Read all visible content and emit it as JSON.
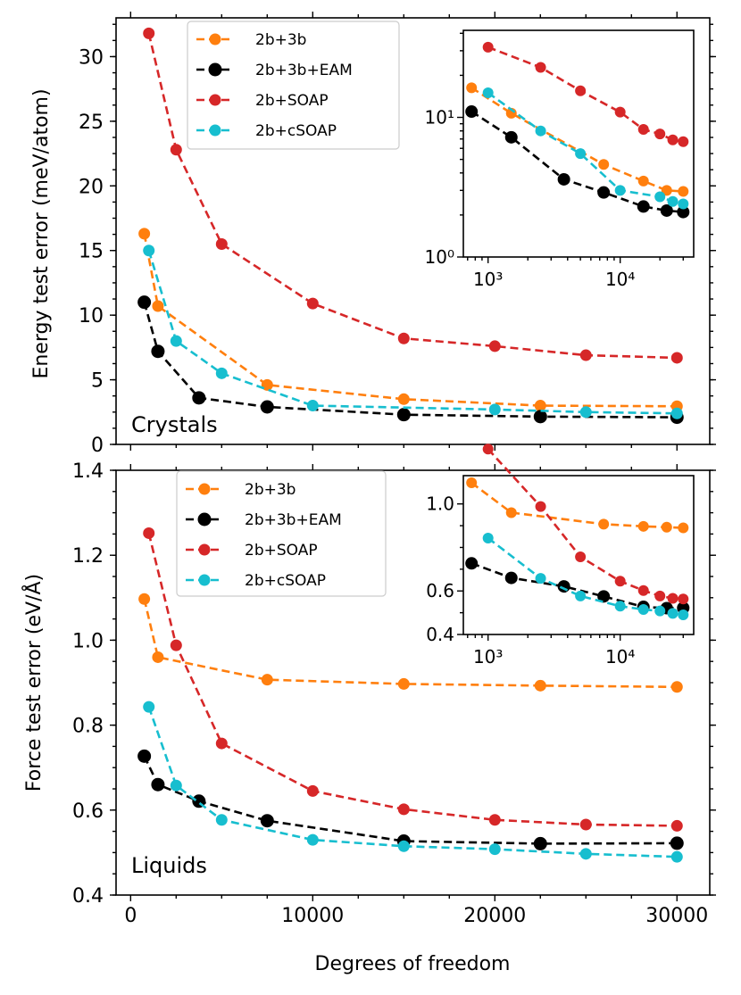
{
  "colors": {
    "2b+3b": "#ff7f0e",
    "2b+3b+EAM": "#000000",
    "2b+SOAP": "#d62728",
    "2b+cSOAP": "#17becf"
  },
  "chart_data": [
    {
      "id": "crystals",
      "type": "line",
      "panel_label": "Crystals",
      "xlabel": "",
      "ylabel": "Energy test error (meV/atom)",
      "xlim": [
        -800,
        31800
      ],
      "ylim": [
        0,
        33
      ],
      "xticks": [
        0,
        10000,
        20000,
        30000
      ],
      "yticks": [
        0,
        5,
        10,
        15,
        20,
        25,
        30
      ],
      "legend": "top-center",
      "series": [
        {
          "name": "2b+3b",
          "x": [
            750,
            1500,
            7500,
            15000,
            22500,
            30000
          ],
          "y": [
            16.3,
            10.7,
            4.6,
            3.5,
            3.0,
            2.95
          ]
        },
        {
          "name": "2b+3b+EAM",
          "x": [
            750,
            1500,
            3750,
            7500,
            15000,
            22500,
            30000
          ],
          "y": [
            11.0,
            7.2,
            3.6,
            2.9,
            2.3,
            2.15,
            2.1
          ]
        },
        {
          "name": "2b+SOAP",
          "x": [
            1000,
            2500,
            5000,
            10000,
            15000,
            20000,
            25000,
            30000
          ],
          "y": [
            31.8,
            22.8,
            15.5,
            10.9,
            8.2,
            7.6,
            6.9,
            6.7
          ]
        },
        {
          "name": "2b+cSOAP",
          "x": [
            1000,
            2500,
            5000,
            10000,
            20000,
            25000,
            30000
          ],
          "y": [
            15.0,
            8.0,
            5.5,
            3.0,
            2.7,
            2.5,
            2.4
          ]
        }
      ],
      "inset": {
        "xscale": "log",
        "yscale": "log",
        "xlim": [
          650,
          36000
        ],
        "ylim": [
          1,
          42
        ],
        "xtick_labels": [
          "10³",
          "10⁴"
        ],
        "xticks": [
          1000,
          10000
        ],
        "ytick_labels": [
          "10⁰",
          "10¹"
        ],
        "yticks": [
          1,
          10
        ]
      }
    },
    {
      "id": "liquids",
      "type": "line",
      "panel_label": "Liquids",
      "xlabel": "Degrees of freedom",
      "ylabel": "Force test error (eV/Å)",
      "xlim": [
        -800,
        31800
      ],
      "ylim": [
        0.4,
        1.4
      ],
      "xticks": [
        0,
        10000,
        20000,
        30000
      ],
      "xtick_labels": [
        "0",
        "10000",
        "20000",
        "30000"
      ],
      "yticks": [
        0.4,
        0.6,
        0.8,
        1.0,
        1.2,
        1.4
      ],
      "ytick_labels": [
        "0.4",
        "0.6",
        "0.8",
        "1.0",
        "1.2",
        "1.4"
      ],
      "legend": "top-left",
      "series": [
        {
          "name": "2b+3b",
          "x": [
            750,
            1500,
            7500,
            15000,
            22500,
            30000
          ],
          "y": [
            1.097,
            0.96,
            0.907,
            0.897,
            0.893,
            0.89
          ]
        },
        {
          "name": "2b+3b+EAM",
          "x": [
            750,
            1500,
            3750,
            7500,
            15000,
            22500,
            30000
          ],
          "y": [
            0.727,
            0.66,
            0.621,
            0.575,
            0.527,
            0.521,
            0.522
          ]
        },
        {
          "name": "2b+SOAP",
          "x": [
            1000,
            2500,
            5000,
            10000,
            15000,
            20000,
            25000,
            30000
          ],
          "y": [
            1.252,
            0.988,
            0.757,
            0.645,
            0.602,
            0.577,
            0.566,
            0.563
          ]
        },
        {
          "name": "2b+cSOAP",
          "x": [
            1000,
            2500,
            5000,
            10000,
            15000,
            20000,
            25000,
            30000
          ],
          "y": [
            0.843,
            0.658,
            0.577,
            0.53,
            0.515,
            0.508,
            0.497,
            0.49
          ]
        }
      ],
      "inset": {
        "xscale": "log",
        "yscale": "linear",
        "xlim": [
          650,
          36000
        ],
        "ylim": [
          0.4,
          1.13
        ],
        "xtick_labels": [
          "10³",
          "10⁴"
        ],
        "xticks": [
          1000,
          10000
        ],
        "ytick_labels": [
          "0.4",
          "0.6",
          "1.0"
        ],
        "yticks": [
          0.4,
          0.6,
          1.0
        ]
      }
    }
  ]
}
